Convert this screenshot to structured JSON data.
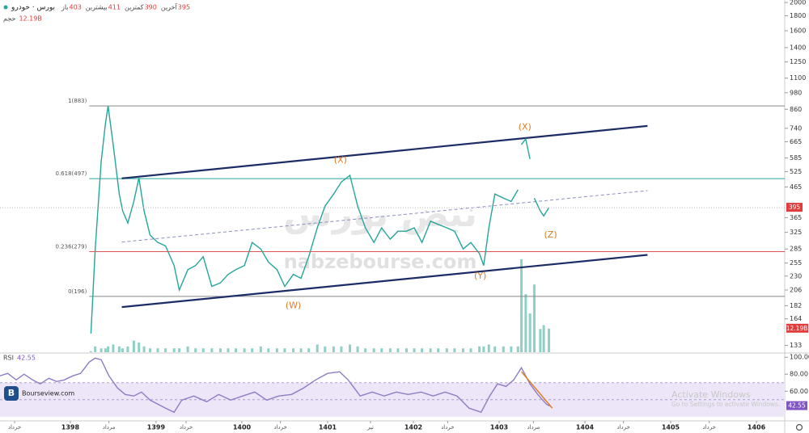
{
  "chart_data": [
    {
      "type": "line",
      "title": "بورس · خودرو",
      "header": [
        {
          "label": "باز",
          "value": 403
        },
        {
          "label": "بیشترین",
          "value": 411
        },
        {
          "label": "کمترین",
          "value": 390
        },
        {
          "label": "آخرین",
          "value": 395
        }
      ],
      "y_scale": "log",
      "xlim": [
        1397.18,
        1406.33
      ],
      "ylim": [
        126,
        2040
      ],
      "yticks": [
        2000,
        1800,
        1600,
        1400,
        1250,
        1100,
        980,
        860,
        740,
        665,
        585,
        525,
        465,
        365,
        325,
        285,
        255,
        230,
        206,
        182,
        164,
        133
      ],
      "color": "#26a69a",
      "x": [
        1398.24,
        1398.29,
        1398.36,
        1398.41,
        1398.44,
        1398.5,
        1398.57,
        1398.61,
        1398.67,
        1398.74,
        1398.8,
        1398.86,
        1398.93,
        1399.02,
        1399.11,
        1399.21,
        1399.27,
        1399.37,
        1399.46,
        1399.55,
        1399.65,
        1399.75,
        1399.84,
        1399.93,
        1400.03,
        1400.12,
        1400.22,
        1400.31,
        1400.41,
        1400.5,
        1400.6,
        1400.69,
        1400.78,
        1400.88,
        1400.97,
        1401.07,
        1401.16,
        1401.26,
        1401.35,
        1401.44,
        1401.54,
        1401.63,
        1401.73,
        1401.82,
        1401.92,
        1402.01,
        1402.1,
        1402.2,
        1402.29,
        1402.39,
        1402.48,
        1402.58,
        1402.67,
        1402.77,
        1402.82,
        1402.88,
        1402.95,
        1403.05,
        1403.14,
        1403.22,
        1403.25,
        1403.26,
        1403.31,
        1403.36,
        1403.38,
        1403.41,
        1403.48,
        1403.52,
        1403.58
      ],
      "values": [
        146,
        285,
        570,
        770,
        883,
        650,
        440,
        385,
        350,
        415,
        500,
        385,
        318,
        300,
        292,
        250,
        206,
        242,
        250,
        268,
        212,
        218,
        233,
        242,
        250,
        300,
        285,
        257,
        242,
        212,
        233,
        226,
        268,
        337,
        400,
        440,
        484,
        510,
        400,
        337,
        300,
        337,
        308,
        328,
        328,
        337,
        300,
        355,
        346,
        337,
        328,
        285,
        300,
        275,
        250,
        337,
        440,
        426,
        415,
        455,
        null,
        650,
        680,
        580,
        null,
        426,
        385,
        370,
        395
      ],
      "volume": {
        "label": "حجم",
        "color": "#8fcfc8",
        "values": [
          0.5,
          3,
          2,
          2,
          3,
          4,
          3,
          2,
          3,
          6,
          5,
          3,
          2,
          2,
          2,
          2,
          2,
          3,
          2,
          2,
          2,
          2,
          2,
          2,
          2,
          2,
          3,
          2,
          2,
          2,
          2,
          2,
          2,
          4,
          3,
          3,
          3,
          4,
          3,
          2,
          2,
          2,
          2,
          2,
          2,
          2,
          2,
          2,
          2,
          2,
          2,
          2,
          2,
          3,
          3,
          4,
          3,
          3,
          3,
          3,
          null,
          48,
          30,
          20,
          null,
          35,
          12,
          14,
          12.19
        ],
        "value_labels": [
          null,
          null,
          null,
          null,
          null,
          null,
          null,
          null,
          null,
          null,
          null,
          null,
          null,
          null,
          null,
          null,
          null,
          null,
          null,
          null,
          null,
          null,
          null,
          null,
          null,
          null,
          null,
          null,
          null,
          null,
          null,
          null,
          null,
          null,
          null,
          null,
          null,
          null,
          null,
          null,
          null,
          null,
          null,
          null,
          null,
          null,
          null,
          null,
          null,
          null,
          null,
          null,
          null,
          null,
          null,
          null,
          null,
          null,
          null,
          null,
          null,
          null,
          null,
          null,
          null,
          null,
          null,
          null,
          "12.19B"
        ]
      },
      "fib_levels": [
        {
          "label": "1(883)",
          "value": 883,
          "color": "#888888"
        },
        {
          "label": "0.618(497)",
          "value": 497,
          "color": "#26a69a"
        },
        {
          "label": "0.236(279)",
          "value": 279,
          "color": "#e05555"
        },
        {
          "label": "0(196)",
          "value": 196,
          "color": "#888888"
        }
      ],
      "trendlines": [
        {
          "x": [
            1398.6,
            1404.73
          ],
          "values": [
            498,
            754
          ],
          "color": "#1c2c66",
          "dashed": false
        },
        {
          "x": [
            1398.6,
            1404.73
          ],
          "values": [
            180,
            272
          ],
          "color": "#1c2c66",
          "dashed": false
        },
        {
          "x": [
            1398.6,
            1404.73
          ],
          "values": [
            301,
            452
          ],
          "color": "#8a8fc0",
          "dashed": true
        }
      ],
      "wave_color": "#e07b22",
      "waves": [
        {
          "label": "(X)",
          "x": 1401.15,
          "value": 575
        },
        {
          "label": "(X)",
          "x": 1403.3,
          "value": 745
        },
        {
          "label": "(W)",
          "x": 1400.6,
          "value": 182
        },
        {
          "label": "(Y)",
          "x": 1402.78,
          "value": 230
        },
        {
          "label": "(Z)",
          "x": 1403.6,
          "value": 318
        }
      ]
    },
    {
      "type": "line",
      "title": "RSI",
      "xlim": [
        1397.18,
        1406.33
      ],
      "ylim": [
        26,
        104
      ],
      "yticks": [
        {
          "value": 100,
          "label": "100.00"
        },
        {
          "value": 80,
          "label": "80.00"
        },
        {
          "value": 60,
          "label": "60.00"
        }
      ],
      "band": [
        30,
        70
      ],
      "midline": 50,
      "color": "#8e7cc3",
      "x": [
        1397.18,
        1397.27,
        1397.37,
        1397.46,
        1397.56,
        1397.65,
        1397.75,
        1397.84,
        1397.93,
        1398.03,
        1398.12,
        1398.22,
        1398.29,
        1398.36,
        1398.45,
        1398.55,
        1398.64,
        1398.74,
        1398.83,
        1398.93,
        1399.02,
        1399.11,
        1399.21,
        1399.3,
        1399.44,
        1399.59,
        1399.73,
        1399.87,
        1400.01,
        1400.15,
        1400.29,
        1400.43,
        1400.58,
        1400.72,
        1400.86,
        1401,
        1401.14,
        1401.24,
        1401.38,
        1401.52,
        1401.66,
        1401.8,
        1401.94,
        1402.09,
        1402.23,
        1402.37,
        1402.51,
        1402.65,
        1402.79,
        1402.89,
        1402.98,
        1403.08,
        1403.17,
        1403.26,
        1403.36,
        1403.45,
        1403.55,
        1403.59
      ],
      "values": [
        78.1,
        81,
        73.3,
        80,
        73.3,
        68.6,
        75.2,
        71.4,
        73.3,
        78.1,
        81,
        94.3,
        99,
        97.1,
        78.1,
        63.8,
        56.2,
        54.3,
        59,
        49.5,
        44.8,
        40,
        35.2,
        49.5,
        54.3,
        47.6,
        56.2,
        49.5,
        54.3,
        59,
        49.5,
        54.3,
        56.2,
        63.8,
        73.3,
        81,
        82.9,
        73.3,
        54.3,
        59,
        54.3,
        59,
        56.2,
        59,
        54.3,
        59,
        54.3,
        40,
        35.2,
        54.3,
        68.6,
        65.7,
        73.3,
        87.6,
        68.6,
        56.2,
        44.8,
        42.55
      ],
      "trendline": {
        "x": [
          1403.26,
          1403.62
        ],
        "values": [
          82.9,
          40
        ],
        "color": "#e07b22"
      },
      "xticks": [
        {
          "value": 1397.35,
          "label": "خرداد"
        },
        1398,
        {
          "value": 1398.45,
          "label": "مرداد"
        },
        1399,
        {
          "value": 1399.35,
          "label": "خرداد"
        },
        1400,
        {
          "value": 1400.45,
          "label": "خرداد"
        },
        1401,
        {
          "value": 1401.5,
          "label": "تیر"
        },
        1402,
        {
          "value": 1402.4,
          "label": "خرداد"
        },
        1403,
        {
          "value": 1403.4,
          "label": "مرداد"
        },
        1404,
        {
          "value": 1404.45,
          "label": "خرداد"
        },
        1405,
        {
          "value": 1405.45,
          "label": "خرداد"
        },
        1406
      ]
    }
  ],
  "watermark": "nabzebourse.com",
  "watermark_fa": "نبض بورس",
  "logo": "Bourseview.com",
  "windows": {
    "title": "Activate Windows",
    "subtitle": "Go to Settings to activate Windows."
  }
}
